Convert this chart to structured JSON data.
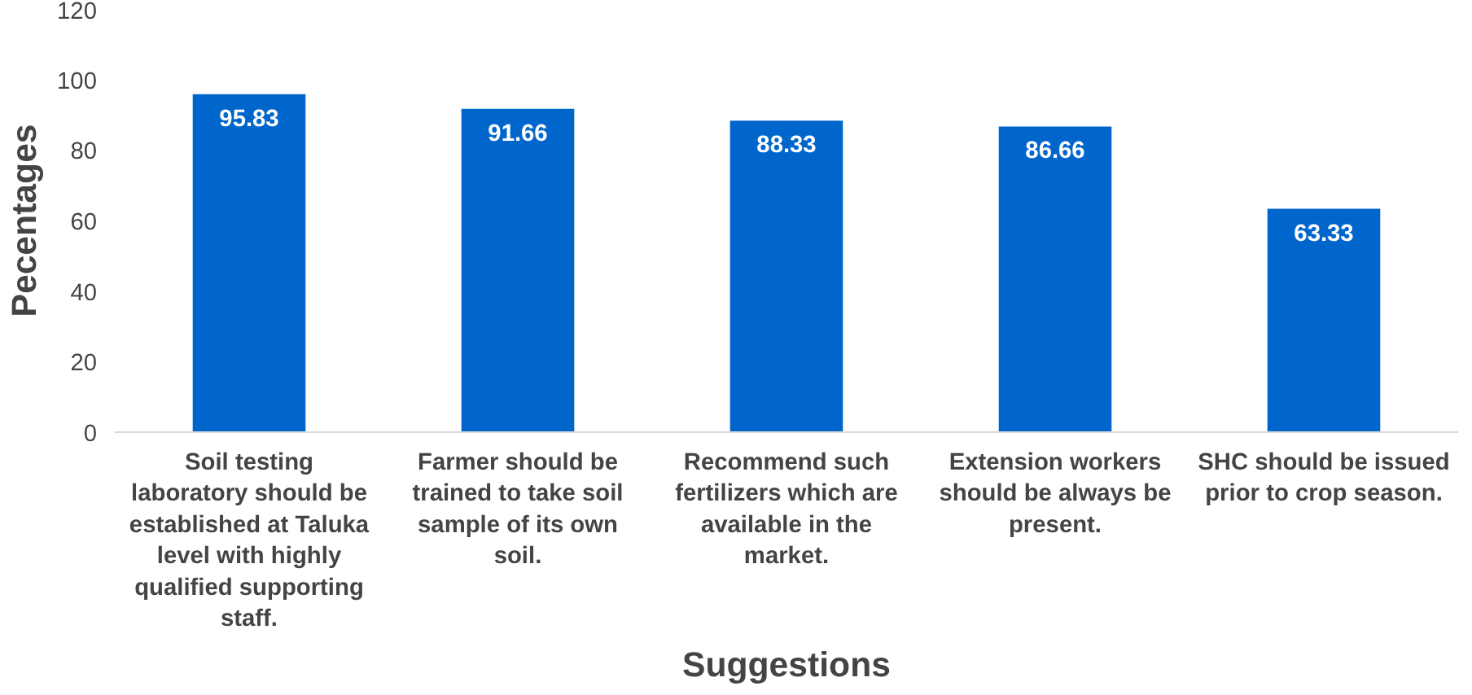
{
  "chart_data": {
    "type": "bar",
    "xlabel": "Suggestions",
    "ylabel": "Pecentages",
    "categories": [
      "Soil testing laboratory should be established at Taluka level with highly qualified supporting staff.",
      "Farmer should be trained to take soil sample of its own soil.",
      "Recommend such fertilizers which are available in the market.",
      "Extension workers should be always be present.",
      "SHC should be issued prior to crop season."
    ],
    "values": [
      95.83,
      91.66,
      88.33,
      86.66,
      63.33
    ],
    "color": "#0066cc",
    "ylim": [
      0,
      120
    ],
    "yticks": [
      0,
      20,
      40,
      60,
      80,
      100,
      120
    ],
    "grid": false,
    "data_labels": true
  }
}
